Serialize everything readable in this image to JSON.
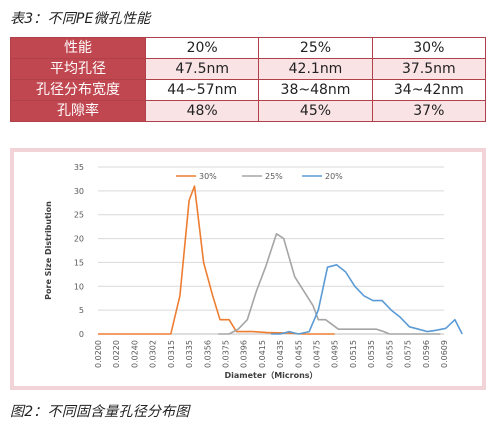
{
  "table_caption": "表3：不同PE微孔性能",
  "figure_caption": "图2：不同固含量孔径分布图",
  "table": {
    "rows": [
      {
        "label": "性能",
        "values": [
          "20%",
          "25%",
          "30%"
        ]
      },
      {
        "label": "平均孔径",
        "values": [
          "47.5nm",
          "42.1nm",
          "37.5nm"
        ]
      },
      {
        "label": "孔径分布宽度",
        "values": [
          "44~57nm",
          "38~48nm",
          "34~42nm"
        ]
      },
      {
        "label": "孔隙率",
        "values": [
          "48%",
          "45%",
          "37%"
        ]
      }
    ]
  },
  "chart_data": {
    "type": "line",
    "xlabel": "Diameter（Microns）",
    "ylabel": "Pore Size Distribution",
    "ylim": [
      0,
      35
    ],
    "yticks": [
      "0",
      "5",
      "10",
      "15",
      "20",
      "25",
      "30",
      "35"
    ],
    "categories": [
      "0.0200",
      "0.0220",
      "0.0240",
      "0.0302",
      "0.0315",
      "0.0335",
      "0.0356",
      "0.0375",
      "0.0396",
      "0.0415",
      "0.0435",
      "0.0455",
      "0.0475",
      "0.0495",
      "0.0515",
      "0.0535",
      "0.0555",
      "0.0575",
      "0.0596",
      "0.0609"
    ],
    "grid": true,
    "legend_position": "top",
    "series": [
      {
        "name": "30%",
        "color": "#ed7d31",
        "points": [
          [
            0,
            0
          ],
          [
            1,
            0
          ],
          [
            2,
            0
          ],
          [
            3,
            0
          ],
          [
            4,
            0
          ],
          [
            4.5,
            8
          ],
          [
            5.0,
            28
          ],
          [
            5.3,
            31
          ],
          [
            5.8,
            15
          ],
          [
            6.3,
            8
          ],
          [
            6.7,
            3
          ],
          [
            7.2,
            3
          ],
          [
            7.6,
            0.5
          ],
          [
            8.5,
            0.5
          ],
          [
            9.3,
            0.3
          ],
          [
            10.4,
            0.2
          ],
          [
            11.2,
            0
          ],
          [
            12,
            0
          ],
          [
            13,
            0
          ]
        ]
      },
      {
        "name": "25%",
        "color": "#a5a5a5",
        "points": [
          [
            6.6,
            0
          ],
          [
            7.2,
            0
          ],
          [
            7.7,
            1
          ],
          [
            8.2,
            3
          ],
          [
            8.7,
            9
          ],
          [
            9.2,
            14
          ],
          [
            9.8,
            21
          ],
          [
            10.2,
            20
          ],
          [
            10.8,
            12
          ],
          [
            11.3,
            9
          ],
          [
            11.8,
            6
          ],
          [
            12.1,
            3
          ],
          [
            12.5,
            3
          ],
          [
            13.2,
            1
          ],
          [
            13.7,
            1
          ],
          [
            14.5,
            1
          ],
          [
            15.3,
            1
          ],
          [
            15.7,
            0.5
          ],
          [
            16.0,
            0
          ],
          [
            17,
            0
          ],
          [
            18,
            0
          ],
          [
            18.8,
            0
          ]
        ]
      },
      {
        "name": "20%",
        "color": "#5b9bd5",
        "points": [
          [
            9.5,
            0
          ],
          [
            10,
            0
          ],
          [
            10.5,
            0.5
          ],
          [
            11,
            0
          ],
          [
            11.6,
            0.5
          ],
          [
            12.1,
            5
          ],
          [
            12.6,
            14
          ],
          [
            13.1,
            14.5
          ],
          [
            13.6,
            13
          ],
          [
            14.1,
            10
          ],
          [
            14.6,
            8
          ],
          [
            15.1,
            7
          ],
          [
            15.6,
            7
          ],
          [
            16.1,
            5
          ],
          [
            16.6,
            3.5
          ],
          [
            17.1,
            1.5
          ],
          [
            17.6,
            1
          ],
          [
            18.1,
            0.5
          ],
          [
            18.6,
            0.8
          ],
          [
            19.1,
            1.2
          ],
          [
            19.6,
            3
          ],
          [
            20,
            0
          ]
        ]
      }
    ]
  }
}
